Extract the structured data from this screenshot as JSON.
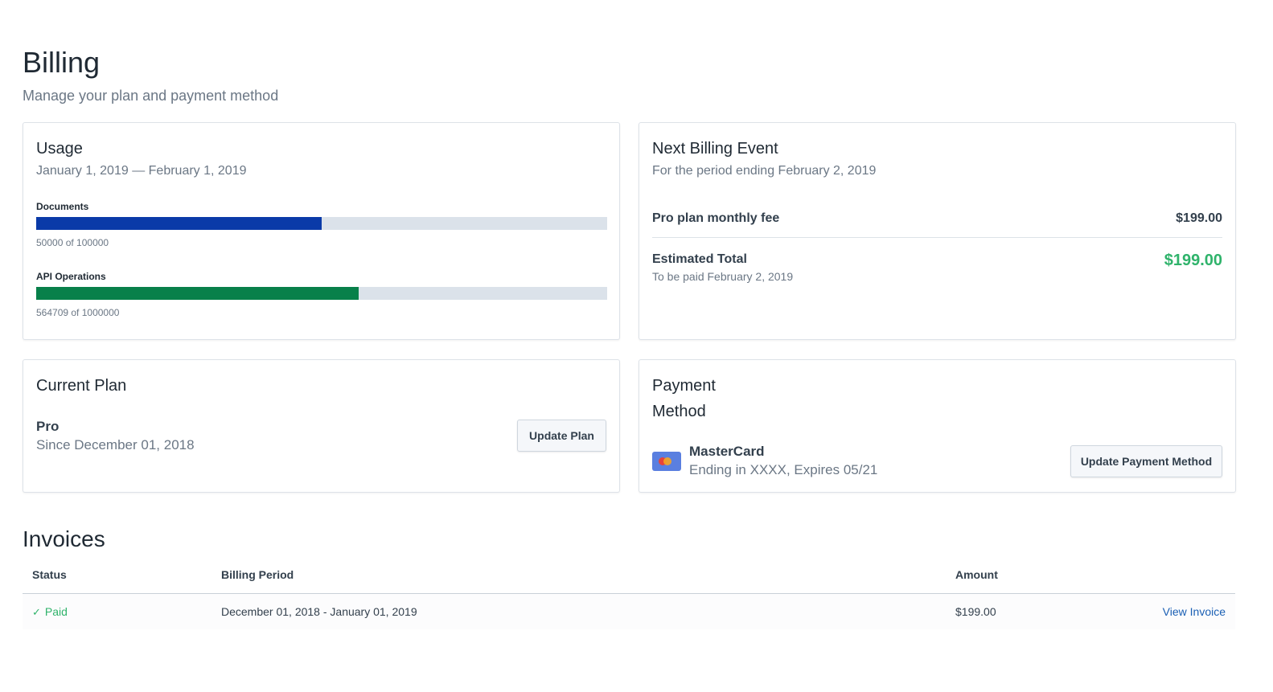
{
  "header": {
    "title": "Billing",
    "subtitle": "Manage your plan and payment method"
  },
  "usage": {
    "title": "Usage",
    "period": "January 1, 2019 — February 1, 2019",
    "meters": [
      {
        "label": "Documents",
        "used": 50000,
        "limit": 100000,
        "caption": "50000 of 100000",
        "color": "#0a3aa8"
      },
      {
        "label": "API Operations",
        "used": 564709,
        "limit": 1000000,
        "caption": "564709 of 1000000",
        "color": "#08804a"
      }
    ]
  },
  "next_billing": {
    "title": "Next Billing Event",
    "period": "For the period ending February 2, 2019",
    "line_item_label": "Pro plan monthly fee",
    "line_item_amount": "$199.00",
    "total_label": "Estimated Total",
    "total_note": "To be paid February 2, 2019",
    "total_amount": "$199.00"
  },
  "current_plan": {
    "title": "Current Plan",
    "plan_name": "Pro",
    "since": "Since December 01, 2018",
    "button_label": "Update Plan"
  },
  "payment_method": {
    "title_line1": "Payment",
    "title_line2": "Method",
    "card_icon": "mastercard-icon",
    "brand": "MasterCard",
    "details": "Ending in XXXX, Expires 05/21",
    "button_label": "Update Payment Method"
  },
  "invoices": {
    "title": "Invoices",
    "columns": [
      "Status",
      "Billing Period",
      "Amount"
    ],
    "rows": [
      {
        "status_icon": "check-icon",
        "status": "Paid",
        "period": "December 01, 2018 - January 01, 2019",
        "amount": "$199.00",
        "action": "View Invoice"
      }
    ]
  },
  "colors": {
    "accent_green": "#2fb36b",
    "link_blue": "#1a5fb4"
  }
}
